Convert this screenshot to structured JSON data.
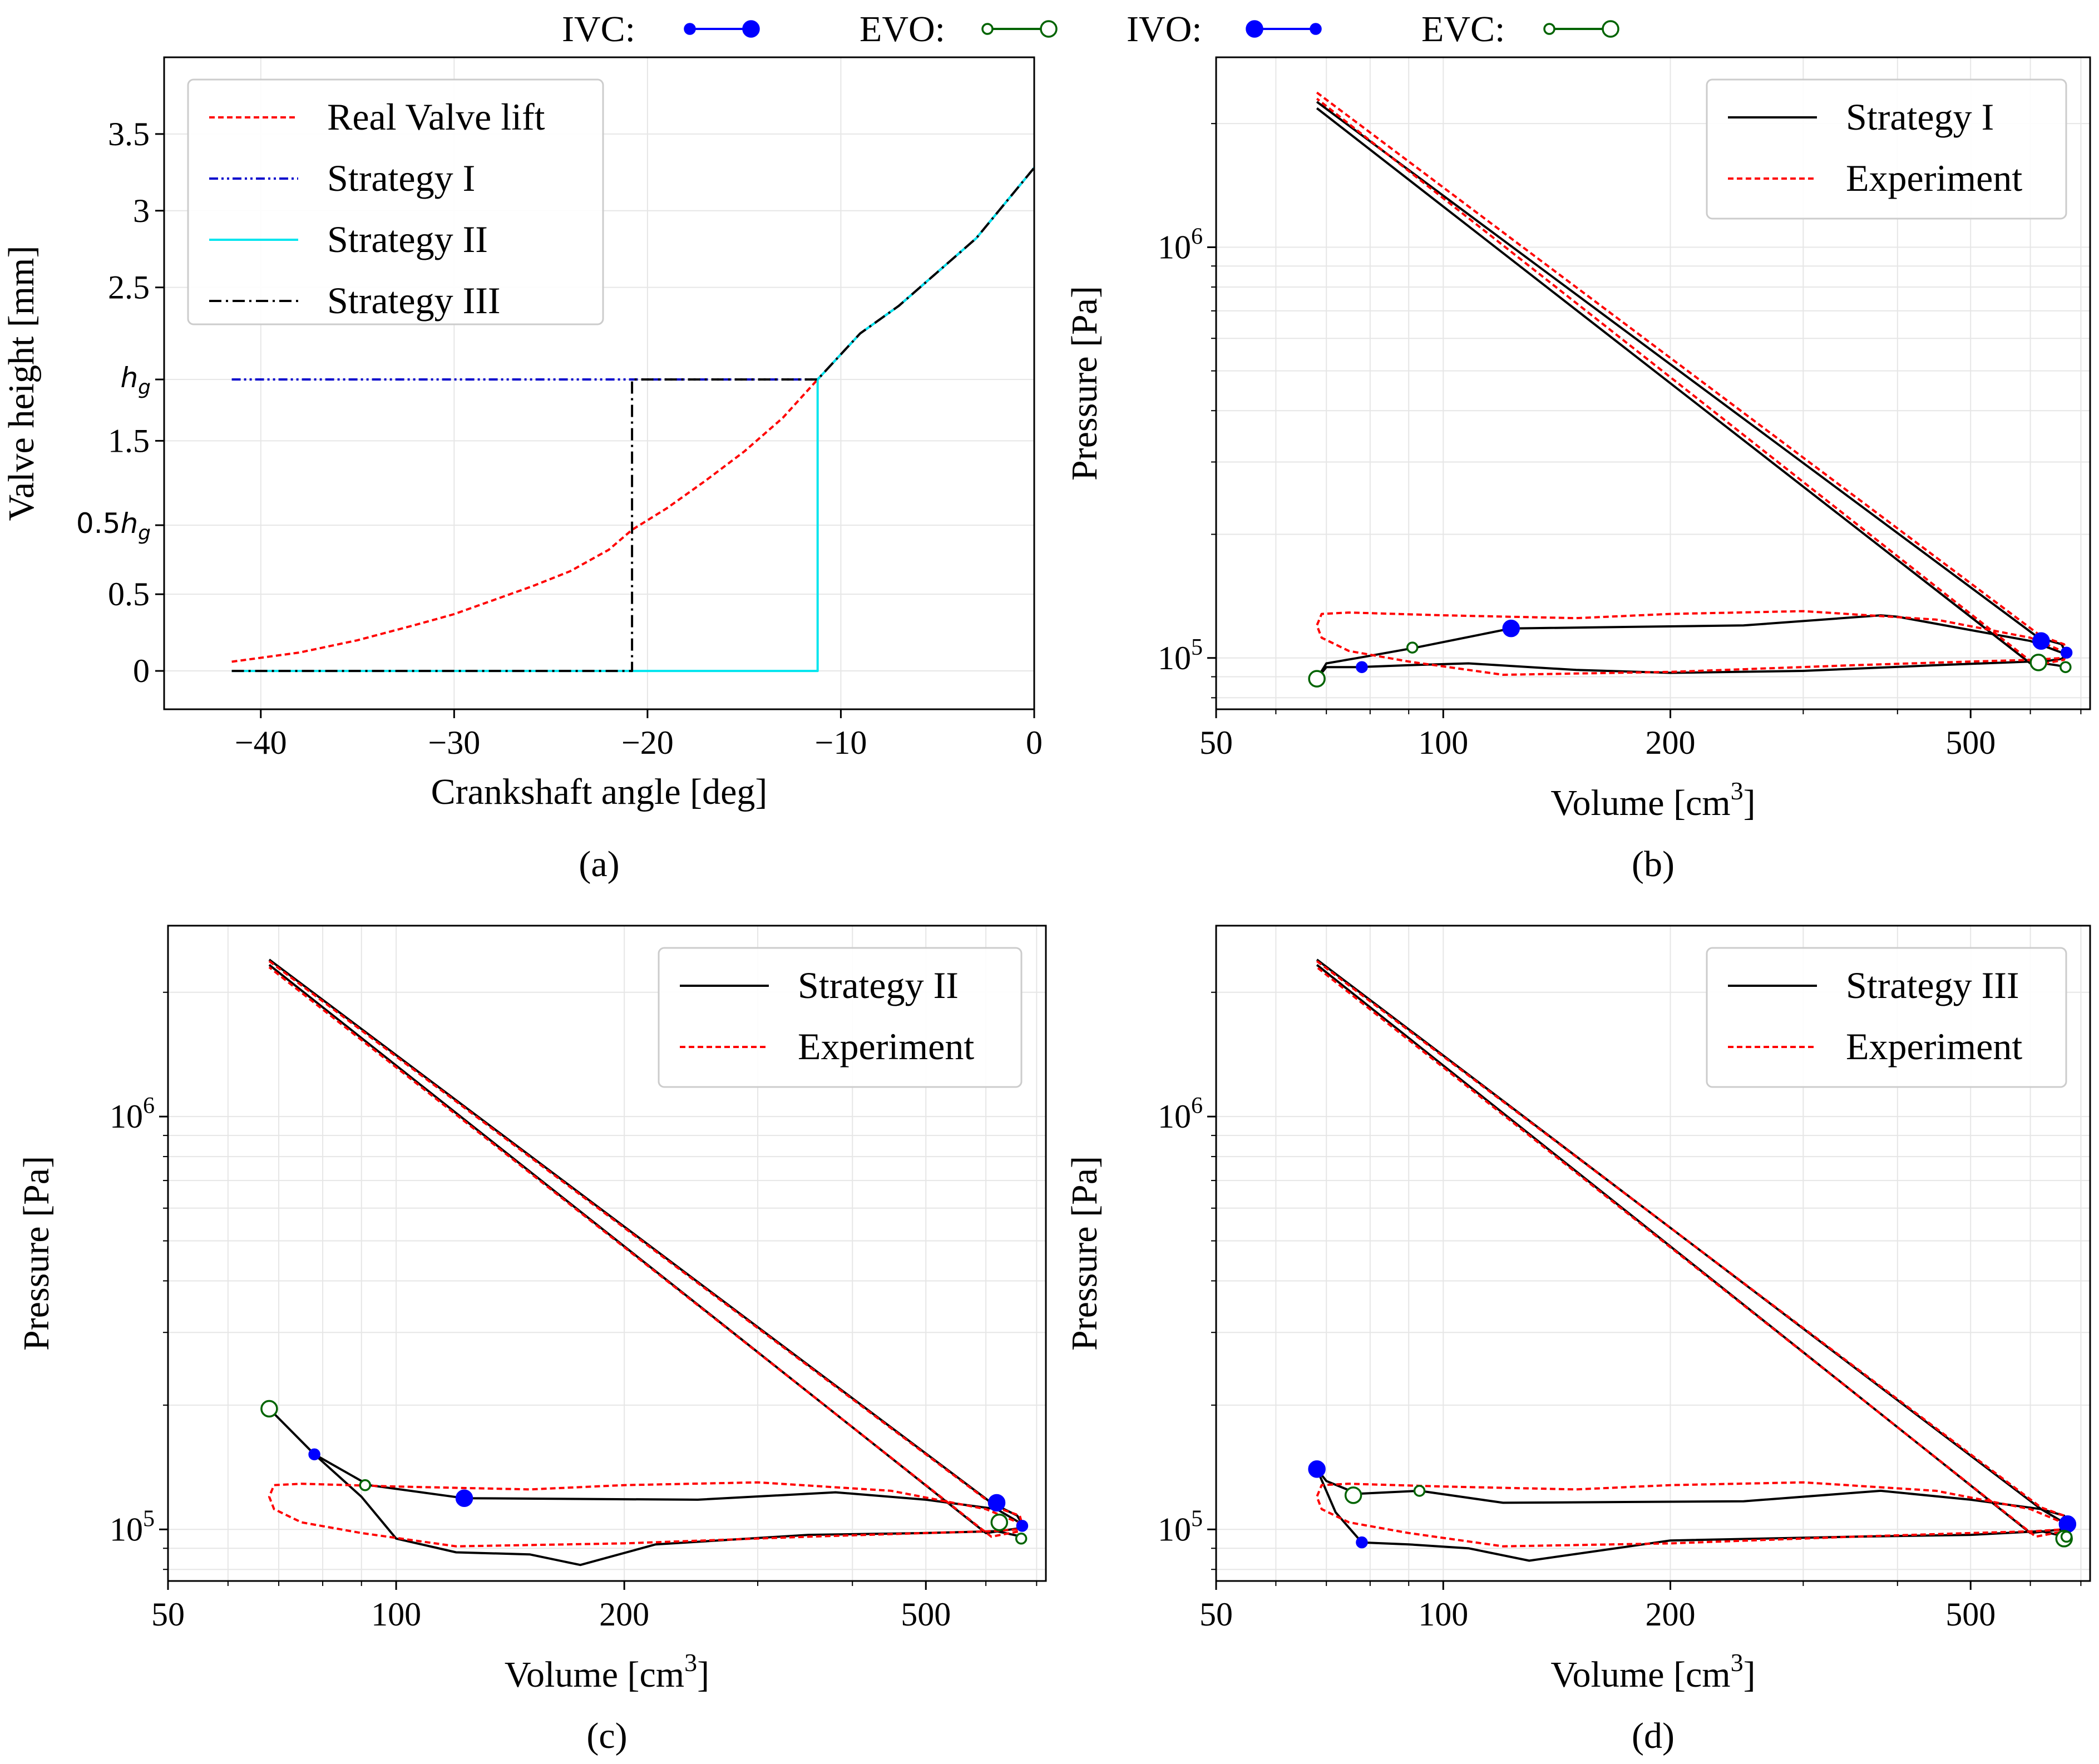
{
  "legend_top": {
    "items": [
      {
        "label": "IVC:",
        "line_color": "#0000ff",
        "marker": "filled",
        "marker_color": "#0000ff"
      },
      {
        "label": "EVO:",
        "line_color": "#006400",
        "marker": "open",
        "marker_color": "#006400"
      },
      {
        "label": "IVO:",
        "line_color": "#0000ff",
        "marker": "filled",
        "marker_color": "#0000ff"
      },
      {
        "label": "EVC:",
        "line_color": "#006400",
        "marker": "open",
        "marker_color": "#006400"
      }
    ]
  },
  "chart_data": [
    {
      "id": "a",
      "type": "line",
      "caption": "(a)",
      "xlabel": "Crankshaft angle [deg]",
      "ylabel": "Valve height [mm]",
      "xlim": [
        -45,
        0
      ],
      "ylim": [
        -0.25,
        4.0
      ],
      "x_ticks": [
        {
          "value": -40,
          "label": "−40"
        },
        {
          "value": -30,
          "label": "−30"
        },
        {
          "value": -20,
          "label": "−20"
        },
        {
          "value": -10,
          "label": "−10"
        },
        {
          "value": 0,
          "label": "0"
        }
      ],
      "y_ticks": [
        {
          "value": 0,
          "label": "0"
        },
        {
          "value": 0.5,
          "label": "0.5"
        },
        {
          "value": 0.95,
          "label": "0.5h_g"
        },
        {
          "value": 1.5,
          "label": "1.5"
        },
        {
          "value": 1.9,
          "label": "h_g"
        },
        {
          "value": 2.5,
          "label": "2.5"
        },
        {
          "value": 3.0,
          "label": "3"
        },
        {
          "value": 3.5,
          "label": "3.5"
        }
      ],
      "legend_position": "upper-left",
      "series": [
        {
          "name": "Real Valve lift",
          "color": "#ff0000",
          "dash": "dashed",
          "x": [
            -41.5,
            -38,
            -35,
            -32,
            -30,
            -28,
            -26,
            -24,
            -22,
            -20.8,
            -19,
            -17,
            -15,
            -13,
            -11.2,
            -9,
            -7,
            -5,
            -3,
            -1.5,
            0
          ],
          "y": [
            0.06,
            0.12,
            0.2,
            0.3,
            0.37,
            0.46,
            0.55,
            0.65,
            0.79,
            0.92,
            1.06,
            1.24,
            1.43,
            1.65,
            1.9,
            2.2,
            2.38,
            2.6,
            2.82,
            3.05,
            3.28
          ]
        },
        {
          "name": "Strategy I",
          "color": "#0000cc",
          "dash": "dashdotdot",
          "x": [
            -41.5,
            -11.2,
            -9,
            -7,
            -5,
            -3,
            -1.5,
            0
          ],
          "y": [
            1.9,
            1.9,
            2.2,
            2.38,
            2.6,
            2.82,
            3.05,
            3.28
          ]
        },
        {
          "name": "Strategy II",
          "color": "#00e5ee",
          "dash": "solid",
          "x": [
            -41.5,
            -11.2,
            -11.2,
            -9,
            -7,
            -5,
            -3,
            -1.5,
            0
          ],
          "y": [
            0,
            0,
            1.9,
            2.2,
            2.38,
            2.6,
            2.82,
            3.05,
            3.28
          ]
        },
        {
          "name": "Strategy III",
          "color": "#000000",
          "dash": "dashdot",
          "x": [
            -41.5,
            -20.8,
            -20.8,
            -11.2,
            -9,
            -7,
            -5,
            -3,
            -1.5,
            0
          ],
          "y": [
            0,
            0,
            1.9,
            1.9,
            2.2,
            2.38,
            2.6,
            2.82,
            3.05,
            3.28
          ]
        }
      ]
    },
    {
      "id": "b",
      "type": "line",
      "caption": "(b)",
      "xscale": "log",
      "yscale": "log",
      "xlabel": "Volume [cm^3]",
      "ylabel": "Pressure [Pa]",
      "xlim": [
        50,
        720
      ],
      "ylim": [
        75000,
        2900000
      ],
      "x_ticks": [
        {
          "value": 50,
          "label": "50"
        },
        {
          "value": 100,
          "label": "100"
        },
        {
          "value": 200,
          "label": "200"
        },
        {
          "value": 500,
          "label": "500"
        }
      ],
      "y_ticks": [
        {
          "value": 100000,
          "base": "10",
          "exp": "5"
        },
        {
          "value": 1000000,
          "base": "10",
          "exp": "6"
        }
      ],
      "legend_position": "upper-right",
      "series": [
        {
          "name": "Strategy I",
          "color": "#000000",
          "dash": "solid",
          "x": [
            68,
            615,
            660,
            670,
            660,
            600,
            68
          ],
          "y": [
            2260000,
            112000,
            108000,
            102000,
            99500,
            97000,
            2180000
          ]
        },
        {
          "name": "Strategy I gas exchange",
          "color": "#000000",
          "dash": "solid",
          "legend": false,
          "x": [
            670,
            600,
            400,
            380,
            250,
            123,
            92,
            77,
            70,
            68,
            70,
            77,
            90,
            108,
            150,
            200,
            300,
            450,
            600,
            650,
            670
          ],
          "y": [
            102000,
            110000,
            126000,
            127000,
            120000,
            118000,
            106000,
            100000,
            97000,
            89000,
            95000,
            95000,
            96000,
            97000,
            93500,
            92000,
            93000,
            96000,
            98000,
            96000,
            95000
          ]
        },
        {
          "name": "Experiment",
          "color": "#ff0000",
          "dash": "dashed",
          "x": [
            68,
            620,
            665,
            670,
            665,
            610,
            68
          ],
          "y": [
            2380000,
            113000,
            108000,
            103000,
            99000,
            96000,
            2300000
          ]
        },
        {
          "name": "Experiment gas exchange",
          "color": "#ff0000",
          "dash": "dashed",
          "legend": false,
          "x": [
            670,
            600,
            450,
            300,
            200,
            150,
            100,
            75,
            69,
            68,
            69,
            75,
            90,
            120,
            200,
            350,
            500,
            610,
            660,
            670
          ],
          "y": [
            103000,
            112000,
            124000,
            130000,
            128000,
            125000,
            127000,
            129000,
            128000,
            120000,
            112000,
            104000,
            98000,
            91000,
            92500,
            96000,
            98000,
            99000,
            100000,
            103000
          ]
        }
      ],
      "markers": [
        {
          "event": "IVC",
          "type": "filled",
          "color": "#0000ff",
          "size": "large",
          "x": 620,
          "y": 110000
        },
        {
          "event": "IVO",
          "type": "filled",
          "color": "#0000ff",
          "size": "large",
          "x": 123,
          "y": 118000
        },
        {
          "event": "IVC",
          "type": "filled",
          "color": "#0000ff",
          "size": "small",
          "x": 78,
          "y": 95000
        },
        {
          "event": "IVO",
          "type": "filled",
          "color": "#0000ff",
          "size": "small",
          "x": 670,
          "y": 103000
        },
        {
          "event": "EVC",
          "type": "open",
          "color": "#006400",
          "size": "large",
          "x": 68,
          "y": 89000
        },
        {
          "event": "EVO",
          "type": "open",
          "color": "#006400",
          "size": "small",
          "x": 91,
          "y": 106000
        },
        {
          "event": "EVC",
          "type": "open",
          "color": "#006400",
          "size": "large",
          "x": 615,
          "y": 97500
        },
        {
          "event": "EVO",
          "type": "open",
          "color": "#006400",
          "size": "small",
          "x": 668,
          "y": 95000
        }
      ]
    },
    {
      "id": "c",
      "type": "line",
      "caption": "(c)",
      "xscale": "log",
      "yscale": "log",
      "xlabel": "Volume [cm^3]",
      "ylabel": "Pressure [Pa]",
      "xlim": [
        50,
        720
      ],
      "ylim": [
        75000,
        2900000
      ],
      "x_ticks": [
        {
          "value": 50,
          "label": "50"
        },
        {
          "value": 100,
          "label": "100"
        },
        {
          "value": 200,
          "label": "200"
        },
        {
          "value": 500,
          "label": "500"
        }
      ],
      "y_ticks": [
        {
          "value": 100000,
          "base": "10",
          "exp": "5"
        },
        {
          "value": 1000000,
          "base": "10",
          "exp": "6"
        }
      ],
      "legend_position": "upper-right",
      "series": [
        {
          "name": "Strategy II",
          "color": "#000000",
          "dash": "solid",
          "x": [
            68,
            610,
            660,
            670,
            660,
            600,
            68
          ],
          "y": [
            2400000,
            116000,
            108000,
            103000,
            100500,
            98000,
            2330000
          ]
        },
        {
          "name": "Strategy II gas exchange",
          "color": "#000000",
          "dash": "solid",
          "legend": false,
          "x": [
            670,
            620,
            500,
            380,
            250,
            123,
            92,
            78,
            68,
            78,
            90,
            100,
            120,
            150,
            175,
            220,
            350,
            500,
            620,
            670
          ],
          "y": [
            103000,
            112000,
            118000,
            123000,
            118000,
            119000,
            128000,
            152000,
            196000,
            152000,
            120000,
            95000,
            88000,
            87000,
            82000,
            92000,
            97000,
            98000,
            99000,
            96000
          ]
        },
        {
          "name": "Experiment",
          "color": "#ff0000",
          "dash": "dashed",
          "x": [
            68,
            620,
            665,
            670,
            665,
            610,
            68
          ],
          "y": [
            2380000,
            113000,
            108000,
            103000,
            99000,
            96000,
            2300000
          ]
        },
        {
          "name": "Experiment gas exchange",
          "color": "#ff0000",
          "dash": "dashed",
          "legend": false,
          "x": [
            670,
            600,
            450,
            300,
            200,
            150,
            100,
            75,
            69,
            68,
            69,
            75,
            90,
            120,
            200,
            350,
            500,
            610,
            660,
            670
          ],
          "y": [
            103000,
            112000,
            124000,
            130000,
            128000,
            125000,
            127000,
            129000,
            128000,
            120000,
            112000,
            104000,
            98000,
            91000,
            92500,
            96000,
            98000,
            99000,
            100000,
            103000
          ]
        }
      ],
      "markers": [
        {
          "event": "EVC",
          "type": "open",
          "color": "#006400",
          "size": "large",
          "x": 68,
          "y": 196000
        },
        {
          "event": "IVC",
          "type": "filled",
          "color": "#0000ff",
          "size": "small",
          "x": 78,
          "y": 152000
        },
        {
          "event": "EVO",
          "type": "open",
          "color": "#006400",
          "size": "small",
          "x": 91,
          "y": 128000
        },
        {
          "event": "IVO",
          "type": "filled",
          "color": "#0000ff",
          "size": "large",
          "x": 123,
          "y": 119000
        },
        {
          "event": "IVC",
          "type": "filled",
          "color": "#0000ff",
          "size": "large",
          "x": 620,
          "y": 116000
        },
        {
          "event": "EVC",
          "type": "open",
          "color": "#006400",
          "size": "large",
          "x": 625,
          "y": 104000
        },
        {
          "event": "IVO",
          "type": "filled",
          "color": "#0000ff",
          "size": "small",
          "x": 670,
          "y": 102000
        },
        {
          "event": "EVO",
          "type": "open",
          "color": "#006400",
          "size": "small",
          "x": 668,
          "y": 95000
        }
      ]
    },
    {
      "id": "d",
      "type": "line",
      "caption": "(d)",
      "xscale": "log",
      "yscale": "log",
      "xlabel": "Volume [cm^3]",
      "ylabel": "Pressure [Pa]",
      "xlim": [
        50,
        720
      ],
      "ylim": [
        75000,
        2900000
      ],
      "x_ticks": [
        {
          "value": 50,
          "label": "50"
        },
        {
          "value": 100,
          "label": "100"
        },
        {
          "value": 200,
          "label": "200"
        },
        {
          "value": 500,
          "label": "500"
        }
      ],
      "y_ticks": [
        {
          "value": 100000,
          "base": "10",
          "exp": "5"
        },
        {
          "value": 1000000,
          "base": "10",
          "exp": "6"
        }
      ],
      "legend_position": "upper-right",
      "series": [
        {
          "name": "Strategy III",
          "color": "#000000",
          "dash": "solid",
          "x": [
            68,
            620,
            665,
            670,
            660,
            600,
            68
          ],
          "y": [
            2400000,
            112000,
            108000,
            103000,
            100000,
            98000,
            2330000
          ]
        },
        {
          "name": "Strategy III gas exchange",
          "color": "#000000",
          "dash": "solid",
          "legend": false,
          "x": [
            670,
            620,
            500,
            380,
            250,
            120,
            93,
            77,
            70,
            68,
            72,
            78,
            90,
            108,
            130,
            200,
            350,
            500,
            620,
            670
          ],
          "y": [
            103000,
            112000,
            118000,
            124000,
            117000,
            116000,
            124000,
            122000,
            131000,
            140000,
            110000,
            93000,
            92000,
            90000,
            84000,
            94000,
            96000,
            97000,
            99000,
            96000
          ]
        },
        {
          "name": "Experiment",
          "color": "#ff0000",
          "dash": "dashed",
          "x": [
            68,
            620,
            665,
            670,
            665,
            610,
            68
          ],
          "y": [
            2380000,
            113000,
            108000,
            103000,
            99000,
            96000,
            2300000
          ]
        },
        {
          "name": "Experiment gas exchange",
          "color": "#ff0000",
          "dash": "dashed",
          "legend": false,
          "x": [
            670,
            600,
            450,
            300,
            200,
            150,
            100,
            75,
            69,
            68,
            69,
            75,
            90,
            120,
            200,
            350,
            500,
            610,
            660,
            670
          ],
          "y": [
            103000,
            112000,
            124000,
            130000,
            128000,
            125000,
            127000,
            129000,
            128000,
            120000,
            112000,
            104000,
            98000,
            91000,
            92500,
            96000,
            98000,
            99000,
            100000,
            103000
          ]
        }
      ],
      "markers": [
        {
          "event": "IVO",
          "type": "filled",
          "color": "#0000ff",
          "size": "large",
          "x": 68,
          "y": 140000
        },
        {
          "event": "EVC",
          "type": "open",
          "color": "#006400",
          "size": "large",
          "x": 76,
          "y": 121000
        },
        {
          "event": "EVO",
          "type": "open",
          "color": "#006400",
          "size": "small",
          "x": 93,
          "y": 124000
        },
        {
          "event": "IVC",
          "type": "filled",
          "color": "#0000ff",
          "size": "small",
          "x": 78,
          "y": 93000
        },
        {
          "event": "IVC",
          "type": "filled",
          "color": "#0000ff",
          "size": "large",
          "x": 672,
          "y": 103000
        },
        {
          "event": "EVC",
          "type": "open",
          "color": "#006400",
          "size": "large",
          "x": 665,
          "y": 95000
        },
        {
          "event": "EVO",
          "type": "open",
          "color": "#006400",
          "size": "small",
          "x": 670,
          "y": 96000
        }
      ]
    }
  ]
}
